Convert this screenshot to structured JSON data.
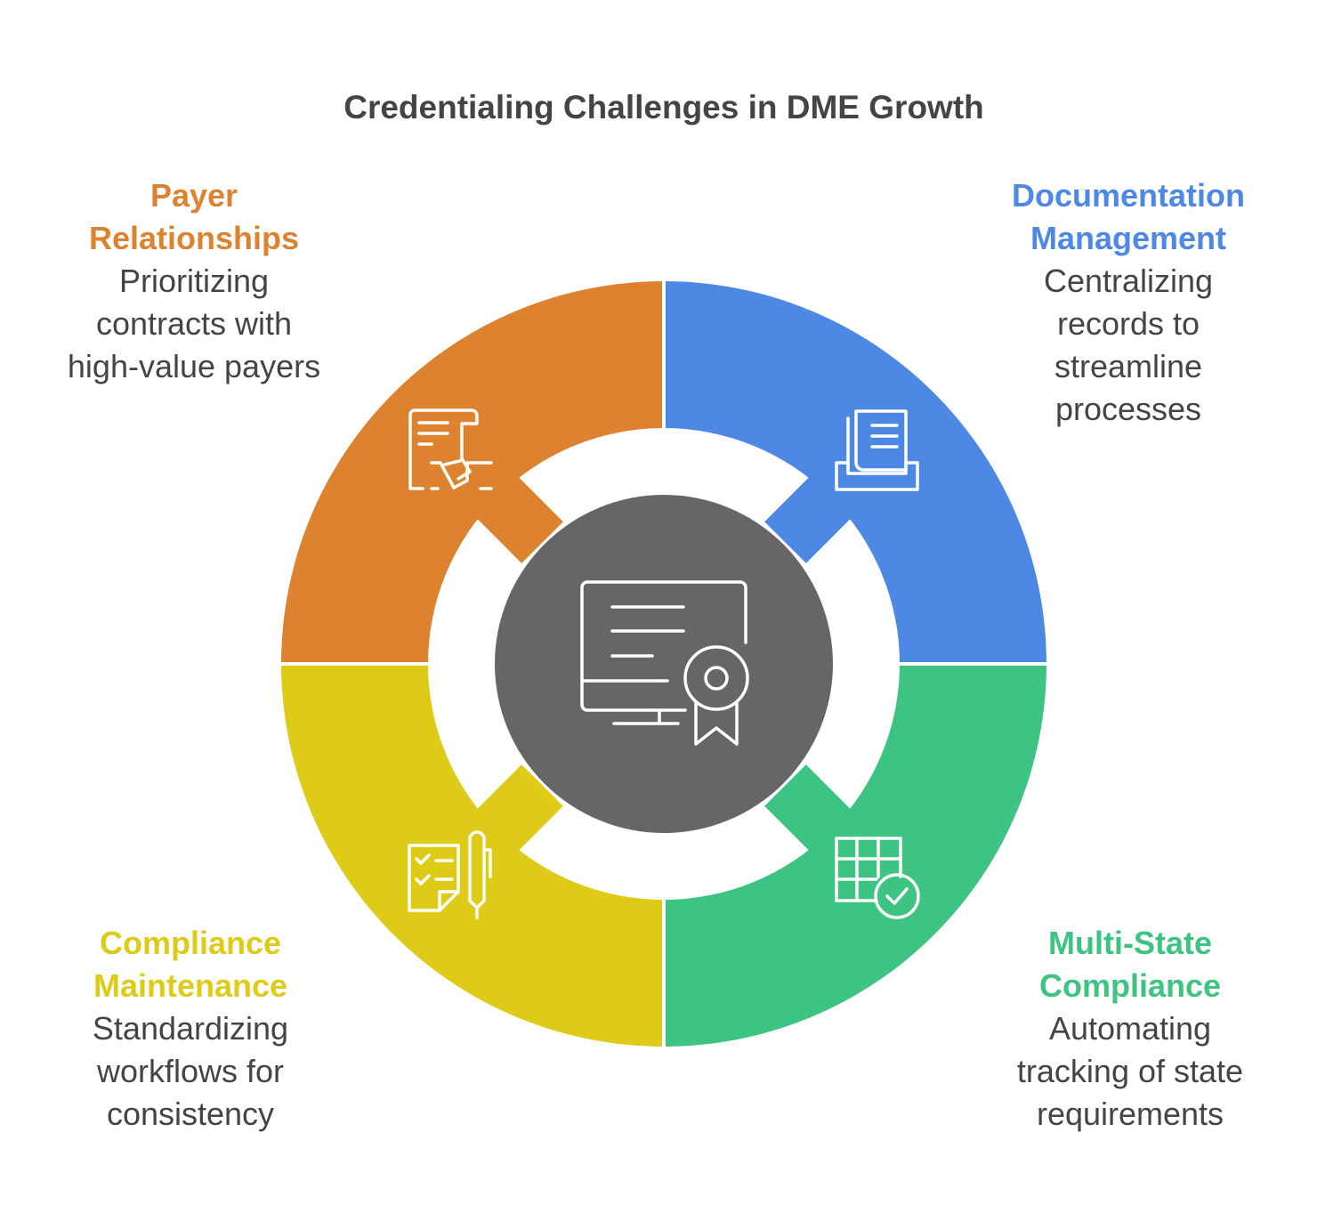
{
  "title": "Credentialing Challenges in DME Growth",
  "center": {
    "icon": "certificate-monitor-icon",
    "color": "#666666"
  },
  "segments": [
    {
      "heading": [
        "Payer",
        "Relationships"
      ],
      "description": [
        "Prioritizing",
        "contracts with",
        "high-value payers"
      ],
      "color": "#DD8330",
      "icon": "contract-handshake-icon"
    },
    {
      "heading": [
        "Documentation",
        "Management"
      ],
      "description": [
        "Centralizing",
        "records to",
        "streamline",
        "processes"
      ],
      "color": "#4E88E5",
      "icon": "document-tray-icon"
    },
    {
      "heading": [
        "Multi-State",
        "Compliance"
      ],
      "description": [
        "Automating",
        "tracking of state",
        "requirements"
      ],
      "color": "#3DC482",
      "icon": "grid-check-icon"
    },
    {
      "heading": [
        "Compliance",
        "Maintenance"
      ],
      "description": [
        "Standardizing",
        "workflows for",
        "consistency"
      ],
      "color": "#DECB17",
      "icon": "checklist-pen-icon"
    }
  ]
}
